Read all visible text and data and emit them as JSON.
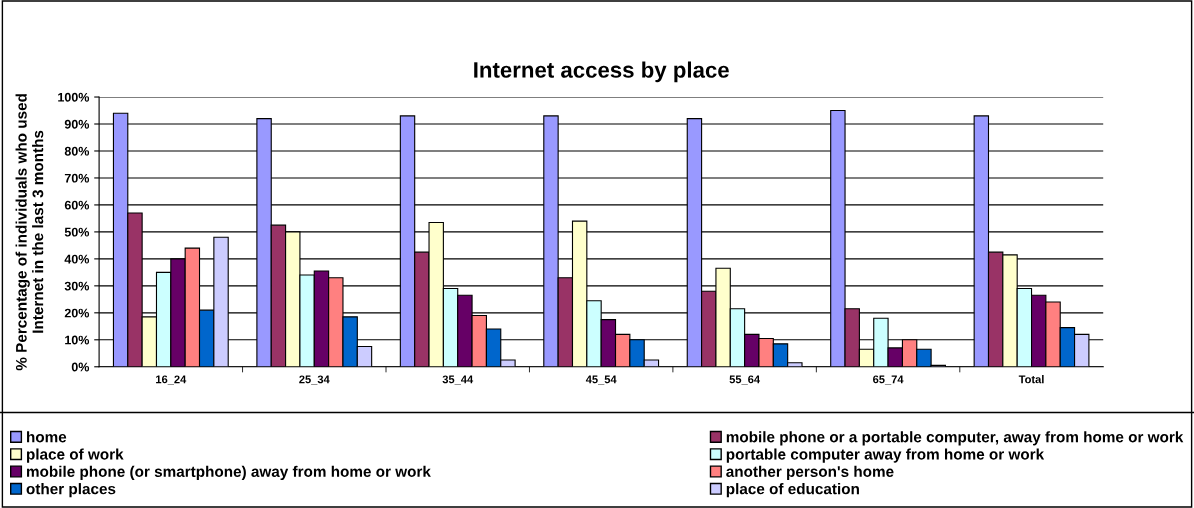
{
  "chart_data": {
    "type": "bar",
    "title": "Internet access by place",
    "ylabel": "% Percentage of individuals who used\nInternet in the last 3 months",
    "categories": [
      "16_24",
      "25_34",
      "35_44",
      "45_54",
      "55_64",
      "65_74",
      "Total"
    ],
    "series": [
      {
        "name": "home",
        "color": "#9999ff",
        "values": [
          94,
          92,
          93,
          93,
          92,
          95,
          93
        ]
      },
      {
        "name": "mobile phone or a portable computer, away from home or work",
        "color": "#993366",
        "values": [
          57,
          52.5,
          42.5,
          33,
          28,
          21.5,
          42.5
        ]
      },
      {
        "name": "place of work",
        "color": "#ffffcc",
        "values": [
          18.5,
          50,
          53.5,
          54,
          36.5,
          6.5,
          41.5
        ]
      },
      {
        "name": "portable computer away from home or work",
        "color": "#ccffff",
        "values": [
          35,
          34,
          29,
          24.5,
          21.5,
          18,
          29
        ]
      },
      {
        "name": "mobile phone (or smartphone) away from home or work",
        "color": "#660066",
        "values": [
          40,
          35.5,
          26.5,
          17.5,
          12,
          7,
          26.5
        ]
      },
      {
        "name": "another person's home",
        "color": "#ff8080",
        "values": [
          44,
          33,
          19,
          12,
          10.5,
          10,
          24
        ]
      },
      {
        "name": "other places",
        "color": "#0066cc",
        "values": [
          21,
          18.5,
          14,
          10,
          8.5,
          6.5,
          14.5
        ]
      },
      {
        "name": "place of education",
        "color": "#ccccff",
        "values": [
          48,
          7.5,
          2.5,
          2.5,
          1.5,
          0.5,
          12
        ]
      }
    ],
    "ylim": [
      0,
      100
    ],
    "yticks": [
      {
        "value": 0,
        "label": "0%"
      },
      {
        "value": 10,
        "label": "10%"
      },
      {
        "value": 20,
        "label": "20%"
      },
      {
        "value": 30,
        "label": "30%"
      },
      {
        "value": 40,
        "label": "40%"
      },
      {
        "value": 50,
        "label": "50%"
      },
      {
        "value": 60,
        "label": "60%"
      },
      {
        "value": 70,
        "label": "70%"
      },
      {
        "value": 80,
        "label": "80%"
      },
      {
        "value": 90,
        "label": "90%"
      },
      {
        "value": 100,
        "label": "100%"
      }
    ],
    "grid": "y",
    "legend": "bottom"
  }
}
